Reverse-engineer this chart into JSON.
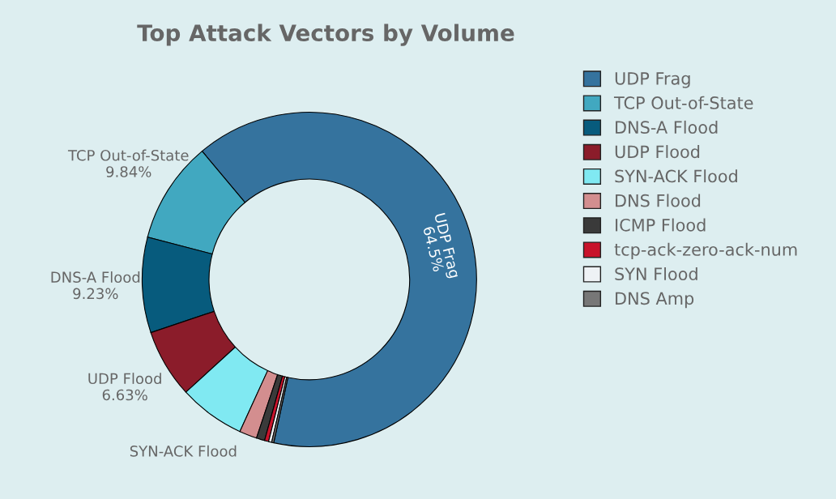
{
  "chart_data": {
    "type": "donut",
    "title": "Top Attack Vectors by Volume",
    "categories": [
      "UDP Frag",
      "TCP Out-of-State",
      "DNS-A Flood",
      "UDP Flood",
      "SYN-ACK Flood",
      "DNS Flood",
      "ICMP Flood",
      "tcp-ack-zero-ack-num",
      "SYN Flood",
      "DNS Amp"
    ],
    "values": [
      64.5,
      9.84,
      9.23,
      6.63,
      6.4,
      1.7,
      0.8,
      0.4,
      0.3,
      0.2
    ],
    "colors": [
      "#35739e",
      "#41a8c0",
      "#075b7d",
      "#8b1c2a",
      "#80e9f2",
      "#d38e8f",
      "#3a3a3a",
      "#c8132b",
      "#eef2f5",
      "#777777"
    ],
    "value_labels": [
      "UDP Frag\n64.5%",
      "TCP Out-of-State\n9.84%",
      "DNS-A Flood\n9.23%",
      "UDP Flood\n6.63%",
      "SYN-ACK Flood",
      null,
      null,
      null,
      null,
      null
    ],
    "legend": "right"
  }
}
